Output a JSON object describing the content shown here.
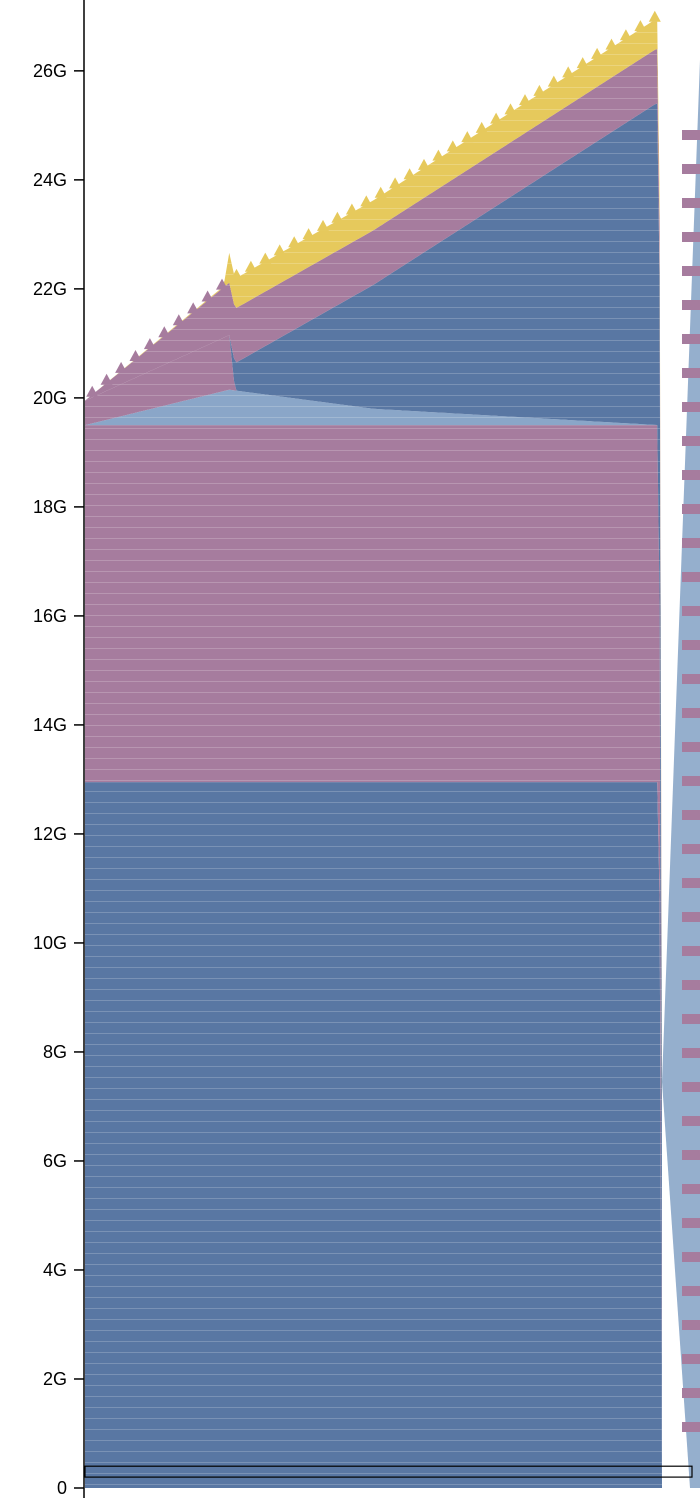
{
  "chart_data": {
    "type": "area",
    "title": "",
    "xlabel": "",
    "ylabel": "",
    "ylim": [
      0,
      27.3
    ],
    "y_unit": "G",
    "y_ticks": [
      {
        "value": 0,
        "label": "0"
      },
      {
        "value": 2,
        "label": "2G"
      },
      {
        "value": 4,
        "label": "4G"
      },
      {
        "value": 6,
        "label": "6G"
      },
      {
        "value": 8,
        "label": "8G"
      },
      {
        "value": 10,
        "label": "10G"
      },
      {
        "value": 12,
        "label": "12G"
      },
      {
        "value": 14,
        "label": "14G"
      },
      {
        "value": 16,
        "label": "16G"
      },
      {
        "value": 18,
        "label": "18G"
      },
      {
        "value": 20,
        "label": "20G"
      },
      {
        "value": 22,
        "label": "22G"
      },
      {
        "value": 24,
        "label": "24G"
      },
      {
        "value": 26,
        "label": "26G"
      }
    ],
    "x_ticks": [],
    "grid": false,
    "legend": "none",
    "colors": {
      "blue": "#5977a3",
      "pink": "#a67c9e",
      "yellow": "#e6c95c",
      "lightblue": "#8aa6c8",
      "outline": "#000000"
    },
    "series": [
      {
        "color": "blue",
        "x": [
          0,
          0.25,
          0.995,
          1.0
        ],
        "values": [
          12.95,
          12.95,
          12.95,
          0
        ]
      },
      {
        "color": "pink",
        "x": [
          0,
          0.25,
          0.995,
          1.0
        ],
        "values": [
          6.55,
          6.55,
          6.55,
          0
        ]
      },
      {
        "color": "lightblue",
        "x": [
          0,
          0.25,
          0.5,
          0.995,
          1.0
        ],
        "values": [
          0,
          0.65,
          0.3,
          0,
          0
        ]
      },
      {
        "color": "pink",
        "x": [
          0,
          0.25,
          0.26,
          0.995
        ],
        "values": [
          0.45,
          1.0,
          0,
          0
        ]
      },
      {
        "color": "blue",
        "x": [
          0,
          0.25,
          0.26,
          0.99
        ],
        "values": [
          0,
          0,
          0.5,
          5.9
        ]
      },
      {
        "color": "pink",
        "x": [
          0,
          0.26,
          0.99
        ],
        "values": [
          0,
          1.0,
          1.0
        ]
      },
      {
        "color": "yellow",
        "x": [
          0,
          0.24,
          0.25,
          0.99
        ],
        "values": [
          0,
          0.02,
          0.55,
          0.55
        ]
      }
    ],
    "step_x": 0.025,
    "secondary_series": {
      "color": "lightblue",
      "x": [
        0.995,
        1.0
      ],
      "values": [
        26.2,
        26.2
      ]
    },
    "selection_range": [
      0.2,
      0.4
    ]
  }
}
